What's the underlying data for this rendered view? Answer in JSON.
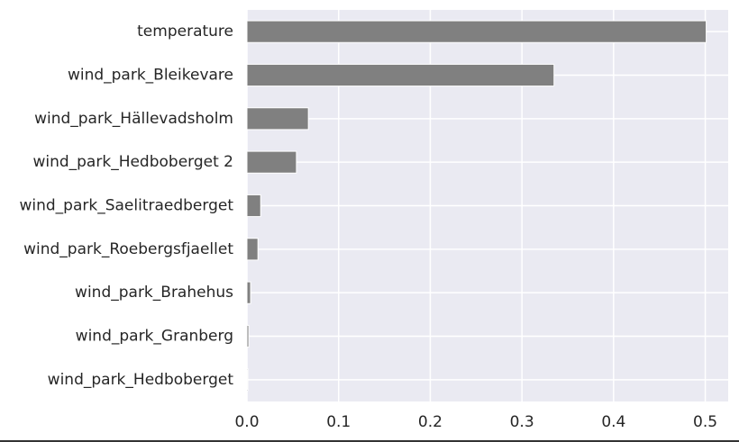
{
  "chart_data": {
    "type": "bar",
    "orientation": "horizontal",
    "categories": [
      "temperature",
      "wind_park_Bleikevare",
      "wind_park_Hällevadsholm",
      "wind_park_Hedboberget 2",
      "wind_park_Saelitraedberget",
      "wind_park_Roebergsfjaellet",
      "wind_park_Brahehus",
      "wind_park_Granberg",
      "wind_park_Hedboberget"
    ],
    "values": [
      0.501,
      0.335,
      0.067,
      0.054,
      0.015,
      0.012,
      0.004,
      0.002,
      0.001
    ],
    "xticks": [
      "0.0",
      "0.1",
      "0.2",
      "0.3",
      "0.4",
      "0.5"
    ],
    "xlim": [
      0,
      0.525
    ],
    "title": "",
    "xlabel": "",
    "ylabel": "",
    "grid": true,
    "legend": "none",
    "colors": {
      "bar": "#808080",
      "background": "#eaeaf2",
      "grid": "#ffffff",
      "text": "#262626"
    }
  }
}
